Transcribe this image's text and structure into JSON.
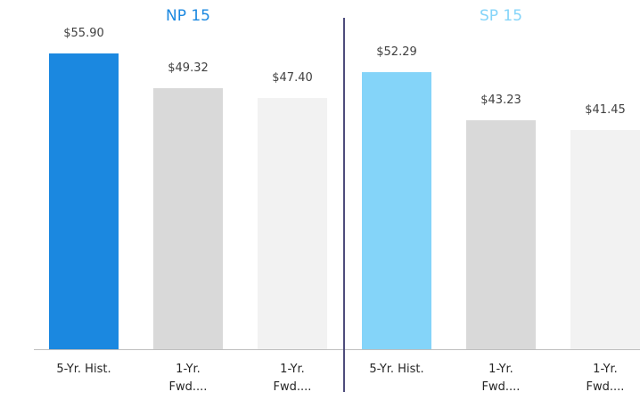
{
  "chart_data": [
    {
      "type": "bar",
      "title": "NP 15",
      "title_color": "#1b88e0",
      "categories": [
        "5-Yr. Hist.",
        "1-Yr. Fwd....",
        "1-Yr. Fwd...."
      ],
      "values": [
        55.9,
        49.32,
        47.4
      ],
      "value_labels": [
        "$55.90",
        "$49.32",
        "$47.40"
      ],
      "colors": [
        "#1b88e0",
        "#d9d9d9",
        "#f2f2f2"
      ],
      "ylim": [
        0,
        60
      ]
    },
    {
      "type": "bar",
      "title": "SP 15",
      "title_color": "#84d4f9",
      "categories": [
        "5-Yr. Hist.",
        "1-Yr. Fwd....",
        "1-Yr. Fwd...."
      ],
      "values": [
        52.29,
        43.23,
        41.45
      ],
      "value_labels": [
        "$52.29",
        "$43.23",
        "$41.45"
      ],
      "colors": [
        "#84d4f9",
        "#d9d9d9",
        "#f2f2f2"
      ],
      "ylim": [
        0,
        60
      ]
    }
  ]
}
